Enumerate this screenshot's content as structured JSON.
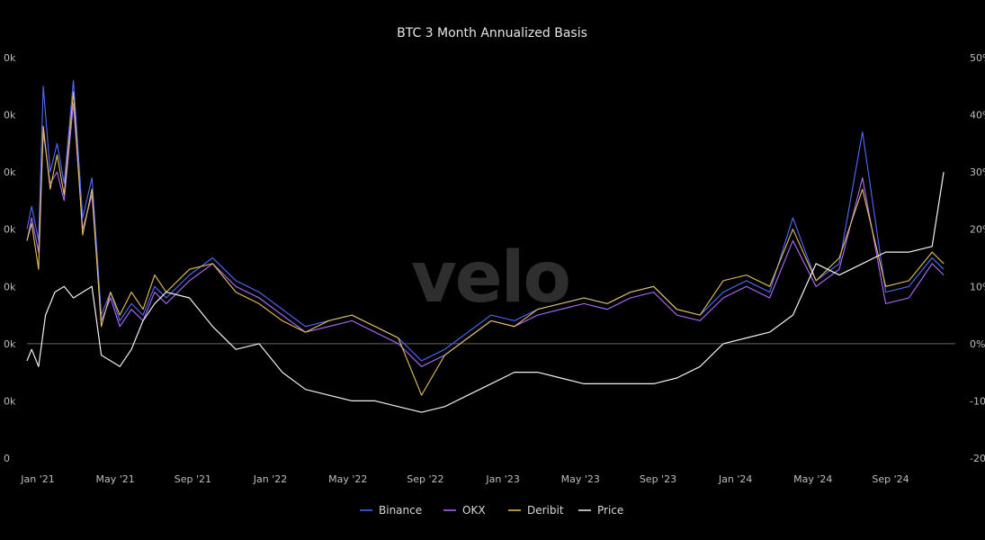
{
  "chart_data": {
    "type": "line",
    "title": "BTC 3 Month Annualized Basis",
    "watermark": "velo",
    "x_ticks": [
      "Jan '21",
      "May '21",
      "Sep '21",
      "Jan '22",
      "May '22",
      "Sep '22",
      "Jan '23",
      "May '23",
      "Sep '23",
      "Jan '24",
      "May '24",
      "Sep '24"
    ],
    "left_axis": {
      "ticks": [
        "0",
        "0k",
        "0k",
        "0k",
        "0k",
        "0k",
        "0k",
        "0k"
      ],
      "range": [
        0,
        140000
      ]
    },
    "right_axis": {
      "ticks": [
        "-20%",
        "-10%",
        "0%",
        "10%",
        "20%",
        "30%",
        "40%",
        "50%"
      ],
      "range": [
        -20,
        50
      ]
    },
    "legend": [
      "Binance",
      "OKX",
      "Deribit",
      "Price"
    ],
    "colors": {
      "Binance": "#4f6bff",
      "OKX": "#b06cff",
      "Deribit": "#e6c25a",
      "Price": "#f2f2f2",
      "zero_line": "#666666",
      "background": "#000000"
    },
    "series": [
      {
        "name": "Binance",
        "axis": "right",
        "x": [
          0,
          0.02,
          0.05,
          0.07,
          0.1,
          0.13,
          0.16,
          0.2,
          0.24,
          0.28,
          0.32,
          0.36,
          0.4,
          0.45,
          0.5,
          0.55,
          0.6,
          0.7,
          0.8,
          0.9,
          1.0,
          1.1,
          1.2,
          1.3,
          1.4,
          1.5,
          1.6,
          1.7,
          1.8,
          1.9,
          2.0,
          2.1,
          2.2,
          2.3,
          2.4,
          2.5,
          2.6,
          2.7,
          2.8,
          2.9,
          3.0,
          3.1,
          3.2,
          3.3,
          3.4,
          3.5,
          3.6,
          3.7,
          3.8,
          3.9,
          3.95
        ],
        "values": [
          20,
          24,
          18,
          45,
          30,
          35,
          28,
          46,
          22,
          29,
          5,
          9,
          4,
          7,
          5,
          10,
          8,
          12,
          15,
          11,
          9,
          6,
          3,
          4,
          5,
          3,
          1,
          -3,
          -1,
          2,
          5,
          4,
          6,
          7,
          8,
          7,
          9,
          10,
          6,
          5,
          9,
          11,
          9,
          22,
          11,
          14,
          37,
          9,
          10,
          15,
          13
        ]
      },
      {
        "name": "OKX",
        "axis": "right",
        "x": [
          0,
          0.02,
          0.05,
          0.07,
          0.1,
          0.13,
          0.16,
          0.2,
          0.24,
          0.28,
          0.32,
          0.36,
          0.4,
          0.45,
          0.5,
          0.55,
          0.6,
          0.7,
          0.8,
          0.9,
          1.0,
          1.1,
          1.2,
          1.3,
          1.4,
          1.5,
          1.6,
          1.7,
          1.8,
          1.9,
          2.0,
          2.1,
          2.2,
          2.3,
          2.4,
          2.5,
          2.6,
          2.7,
          2.8,
          2.9,
          3.0,
          3.1,
          3.2,
          3.3,
          3.4,
          3.5,
          3.6,
          3.7,
          3.8,
          3.9,
          3.95
        ],
        "values": [
          18,
          22,
          16,
          37,
          28,
          30,
          25,
          42,
          20,
          26,
          4,
          8,
          3,
          6,
          4,
          9,
          7,
          11,
          14,
          10,
          8,
          5,
          2,
          3,
          4,
          2,
          0,
          -4,
          -2,
          1,
          4,
          3,
          5,
          6,
          7,
          6,
          8,
          9,
          5,
          4,
          8,
          10,
          8,
          18,
          10,
          13,
          29,
          7,
          8,
          14,
          12
        ]
      },
      {
        "name": "Deribit",
        "axis": "right",
        "x": [
          0,
          0.02,
          0.05,
          0.07,
          0.1,
          0.13,
          0.16,
          0.2,
          0.24,
          0.28,
          0.32,
          0.36,
          0.4,
          0.45,
          0.5,
          0.55,
          0.6,
          0.7,
          0.8,
          0.9,
          1.0,
          1.1,
          1.2,
          1.3,
          1.4,
          1.5,
          1.6,
          1.7,
          1.8,
          1.9,
          2.0,
          2.1,
          2.2,
          2.3,
          2.4,
          2.5,
          2.6,
          2.7,
          2.8,
          2.9,
          3.0,
          3.1,
          3.2,
          3.3,
          3.4,
          3.5,
          3.6,
          3.7,
          3.8,
          3.9,
          3.95
        ],
        "values": [
          18,
          21,
          13,
          38,
          27,
          33,
          26,
          44,
          19,
          27,
          3,
          9,
          5,
          9,
          6,
          12,
          9,
          13,
          14,
          9,
          7,
          4,
          2,
          4,
          5,
          3,
          1,
          -9,
          -2,
          1,
          4,
          3,
          6,
          7,
          8,
          7,
          9,
          10,
          6,
          5,
          11,
          12,
          10,
          20,
          11,
          15,
          27,
          10,
          11,
          16,
          14
        ]
      },
      {
        "name": "Price",
        "axis": "right",
        "x": [
          0,
          0.02,
          0.05,
          0.08,
          0.12,
          0.16,
          0.2,
          0.24,
          0.28,
          0.32,
          0.36,
          0.4,
          0.45,
          0.5,
          0.55,
          0.6,
          0.7,
          0.8,
          0.9,
          1.0,
          1.1,
          1.2,
          1.3,
          1.4,
          1.5,
          1.6,
          1.7,
          1.8,
          1.9,
          2.0,
          2.1,
          2.2,
          2.3,
          2.4,
          2.5,
          2.6,
          2.7,
          2.8,
          2.9,
          3.0,
          3.1,
          3.2,
          3.3,
          3.4,
          3.5,
          3.6,
          3.7,
          3.8,
          3.9,
          3.95
        ],
        "values": [
          -3,
          -1,
          -4,
          5,
          9,
          10,
          8,
          9,
          10,
          -2,
          -3,
          -4,
          -1,
          4,
          7,
          9,
          8,
          3,
          -1,
          0,
          -5,
          -8,
          -9,
          -10,
          -10,
          -11,
          -12,
          -11,
          -9,
          -7,
          -5,
          -5,
          -6,
          -7,
          -7,
          -7,
          -7,
          -6,
          -4,
          0,
          1,
          2,
          5,
          14,
          12,
          14,
          16,
          16,
          17,
          30
        ]
      }
    ]
  }
}
